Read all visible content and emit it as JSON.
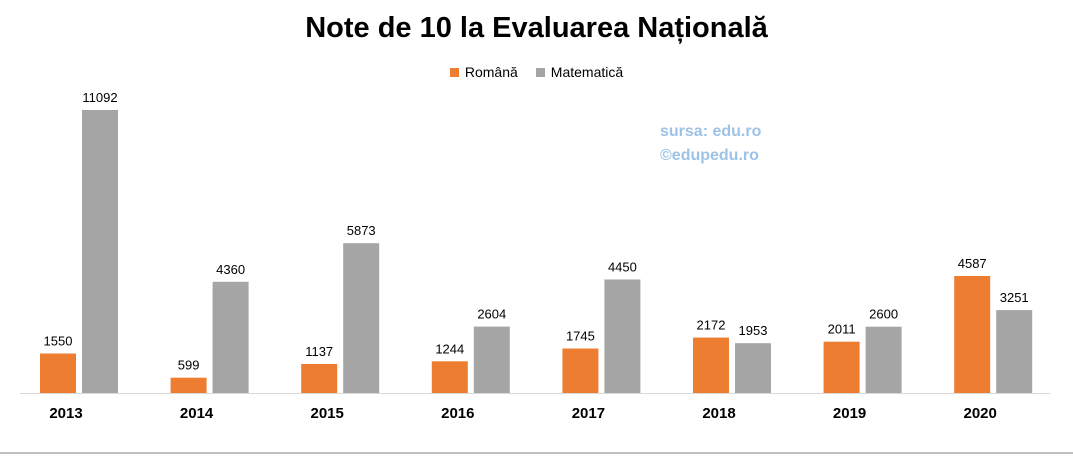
{
  "chart_data": {
    "type": "bar",
    "title": "Note de 10 la Evaluarea Națională",
    "categories": [
      "2013",
      "2014",
      "2015",
      "2016",
      "2017",
      "2018",
      "2019",
      "2020"
    ],
    "series": [
      {
        "name": "Română",
        "color": "#ed7d31",
        "values": [
          1550,
          599,
          1137,
          1244,
          1745,
          2172,
          2011,
          4587
        ]
      },
      {
        "name": "Matematică",
        "color": "#a5a5a5",
        "values": [
          11092,
          4360,
          5873,
          2604,
          4450,
          1953,
          2600,
          3251
        ]
      }
    ],
    "ylim": [
      0,
      11092
    ],
    "data_labels": true,
    "grid": false,
    "legend_position": "top"
  },
  "annotation": {
    "line1": "sursa: edu.ro",
    "line2": "©edupedu.ro"
  }
}
